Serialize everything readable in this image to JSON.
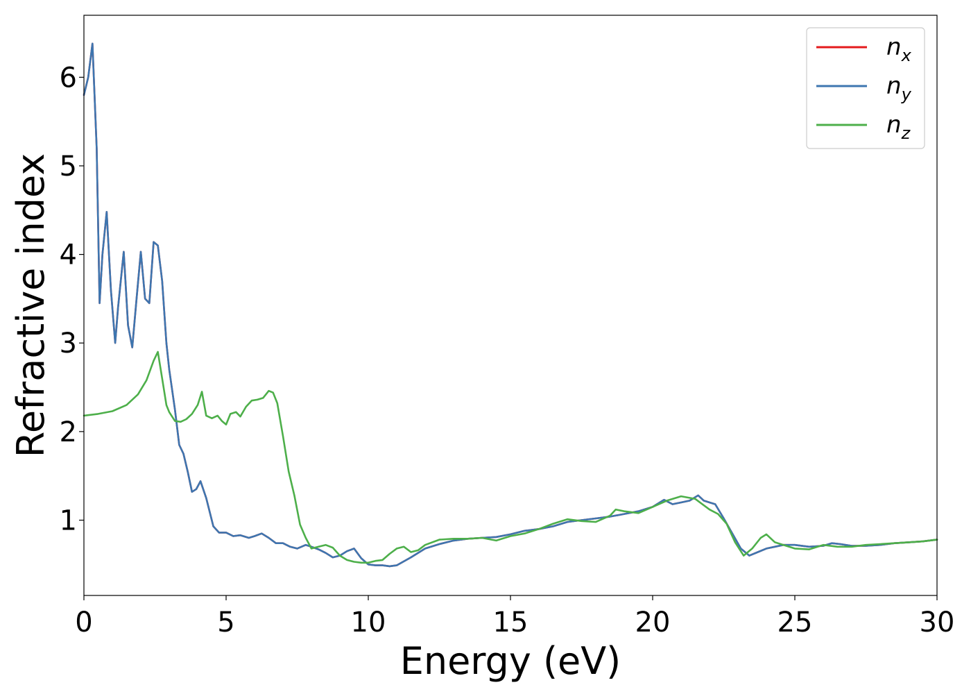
{
  "chart_data": {
    "type": "line",
    "title": "",
    "xlabel": "Energy (eV)",
    "ylabel": "Refractive index",
    "xlim": [
      0,
      30
    ],
    "ylim": [
      0.15,
      6.7
    ],
    "xticks": [
      0,
      5,
      10,
      15,
      20,
      25,
      30
    ],
    "yticks": [
      1,
      2,
      3,
      4,
      5,
      6
    ],
    "grid": false,
    "legend_position": "top-right",
    "series": [
      {
        "name": "n_x",
        "label_base": "n",
        "label_sub": "x",
        "color": "#e41a1c",
        "x": [
          0,
          0.15,
          0.3,
          0.45,
          0.55,
          0.65,
          0.8,
          0.95,
          1.1,
          1.2,
          1.4,
          1.55,
          1.7,
          1.85,
          2.0,
          2.15,
          2.3,
          2.45,
          2.6,
          2.75,
          2.9,
          3.0,
          3.2,
          3.35,
          3.5,
          3.65,
          3.8,
          3.95,
          4.1,
          4.3,
          4.55,
          4.75,
          5.0,
          5.25,
          5.5,
          5.8,
          6.0,
          6.25,
          6.5,
          6.75,
          7.0,
          7.25,
          7.5,
          7.8,
          8.0,
          8.25,
          8.5,
          8.75,
          9.0,
          9.25,
          9.5,
          9.75,
          10.0,
          10.25,
          10.5,
          10.75,
          11.0,
          11.5,
          12.0,
          12.5,
          13.0,
          13.5,
          14.0,
          14.5,
          15.0,
          15.5,
          16.0,
          16.5,
          17.0,
          17.5,
          18.0,
          18.5,
          19.0,
          19.5,
          20.0,
          20.4,
          20.7,
          21.0,
          21.3,
          21.6,
          21.8,
          22.0,
          22.2,
          22.5,
          22.8,
          23.1,
          23.4,
          23.7,
          24.0,
          24.3,
          24.6,
          25.0,
          25.5,
          26.0,
          26.3,
          26.6,
          27.0,
          27.5,
          28.0,
          28.5,
          29.0,
          29.5,
          30.0
        ],
        "y": [
          5.8,
          6.0,
          6.38,
          5.2,
          3.45,
          4.0,
          4.48,
          3.6,
          3.0,
          3.4,
          4.03,
          3.2,
          2.95,
          3.5,
          4.03,
          3.5,
          3.45,
          4.14,
          4.1,
          3.7,
          3.0,
          2.7,
          2.25,
          1.85,
          1.75,
          1.55,
          1.32,
          1.35,
          1.44,
          1.25,
          0.93,
          0.86,
          0.86,
          0.82,
          0.83,
          0.8,
          0.82,
          0.85,
          0.8,
          0.74,
          0.74,
          0.7,
          0.68,
          0.72,
          0.7,
          0.67,
          0.63,
          0.58,
          0.6,
          0.65,
          0.68,
          0.57,
          0.5,
          0.49,
          0.49,
          0.48,
          0.49,
          0.58,
          0.68,
          0.73,
          0.77,
          0.79,
          0.8,
          0.81,
          0.84,
          0.88,
          0.9,
          0.93,
          0.98,
          1.0,
          1.02,
          1.04,
          1.07,
          1.1,
          1.15,
          1.23,
          1.18,
          1.2,
          1.22,
          1.28,
          1.22,
          1.2,
          1.18,
          1.02,
          0.85,
          0.68,
          0.6,
          0.64,
          0.68,
          0.7,
          0.72,
          0.72,
          0.7,
          0.71,
          0.74,
          0.73,
          0.71,
          0.71,
          0.72,
          0.74,
          0.75,
          0.76,
          0.78
        ]
      },
      {
        "name": "n_y",
        "label_base": "n",
        "label_sub": "y",
        "color": "#3d76b0",
        "x": [
          0,
          0.15,
          0.3,
          0.45,
          0.55,
          0.65,
          0.8,
          0.95,
          1.1,
          1.2,
          1.4,
          1.55,
          1.7,
          1.85,
          2.0,
          2.15,
          2.3,
          2.45,
          2.6,
          2.75,
          2.9,
          3.0,
          3.2,
          3.35,
          3.5,
          3.65,
          3.8,
          3.95,
          4.1,
          4.3,
          4.55,
          4.75,
          5.0,
          5.25,
          5.5,
          5.8,
          6.0,
          6.25,
          6.5,
          6.75,
          7.0,
          7.25,
          7.5,
          7.8,
          8.0,
          8.25,
          8.5,
          8.75,
          9.0,
          9.25,
          9.5,
          9.75,
          10.0,
          10.25,
          10.5,
          10.75,
          11.0,
          11.5,
          12.0,
          12.5,
          13.0,
          13.5,
          14.0,
          14.5,
          15.0,
          15.5,
          16.0,
          16.5,
          17.0,
          17.5,
          18.0,
          18.5,
          19.0,
          19.5,
          20.0,
          20.4,
          20.7,
          21.0,
          21.3,
          21.6,
          21.8,
          22.0,
          22.2,
          22.5,
          22.8,
          23.1,
          23.4,
          23.7,
          24.0,
          24.3,
          24.6,
          25.0,
          25.5,
          26.0,
          26.3,
          26.6,
          27.0,
          27.5,
          28.0,
          28.5,
          29.0,
          29.5,
          30.0
        ],
        "y": [
          5.8,
          6.0,
          6.38,
          5.2,
          3.45,
          4.0,
          4.48,
          3.6,
          3.0,
          3.4,
          4.03,
          3.2,
          2.95,
          3.5,
          4.03,
          3.5,
          3.45,
          4.14,
          4.1,
          3.7,
          3.0,
          2.7,
          2.25,
          1.85,
          1.75,
          1.55,
          1.32,
          1.35,
          1.44,
          1.25,
          0.93,
          0.86,
          0.86,
          0.82,
          0.83,
          0.8,
          0.82,
          0.85,
          0.8,
          0.74,
          0.74,
          0.7,
          0.68,
          0.72,
          0.7,
          0.67,
          0.63,
          0.58,
          0.6,
          0.65,
          0.68,
          0.57,
          0.5,
          0.49,
          0.49,
          0.48,
          0.49,
          0.58,
          0.68,
          0.73,
          0.77,
          0.79,
          0.8,
          0.81,
          0.84,
          0.88,
          0.9,
          0.93,
          0.98,
          1.0,
          1.02,
          1.04,
          1.07,
          1.1,
          1.15,
          1.23,
          1.18,
          1.2,
          1.22,
          1.28,
          1.22,
          1.2,
          1.18,
          1.02,
          0.85,
          0.68,
          0.6,
          0.64,
          0.68,
          0.7,
          0.72,
          0.72,
          0.7,
          0.71,
          0.74,
          0.73,
          0.71,
          0.71,
          0.72,
          0.74,
          0.75,
          0.76,
          0.78
        ]
      },
      {
        "name": "n_z",
        "label_base": "n",
        "label_sub": "z",
        "color": "#4daf4a",
        "x": [
          0,
          0.5,
          1.0,
          1.5,
          1.9,
          2.2,
          2.45,
          2.6,
          2.75,
          2.9,
          3.0,
          3.2,
          3.4,
          3.6,
          3.8,
          4.0,
          4.15,
          4.3,
          4.5,
          4.7,
          4.85,
          5.0,
          5.15,
          5.35,
          5.5,
          5.7,
          5.9,
          6.1,
          6.3,
          6.5,
          6.65,
          6.8,
          7.0,
          7.2,
          7.4,
          7.6,
          7.8,
          8.0,
          8.25,
          8.5,
          8.75,
          9.0,
          9.25,
          9.5,
          9.75,
          10.0,
          10.25,
          10.5,
          10.75,
          11.0,
          11.25,
          11.5,
          11.75,
          12.0,
          12.5,
          13.0,
          13.5,
          14.0,
          14.5,
          15.0,
          15.5,
          16.0,
          16.5,
          17.0,
          17.5,
          18.0,
          18.5,
          18.7,
          19.0,
          19.5,
          20.0,
          20.5,
          21.0,
          21.5,
          22.0,
          22.3,
          22.6,
          22.9,
          23.2,
          23.5,
          23.8,
          24.0,
          24.3,
          24.6,
          25.0,
          25.5,
          26.0,
          26.5,
          27.0,
          27.5,
          28.0,
          28.5,
          29.0,
          29.5,
          30.0
        ],
        "y": [
          2.18,
          2.2,
          2.23,
          2.3,
          2.42,
          2.58,
          2.8,
          2.9,
          2.6,
          2.3,
          2.22,
          2.12,
          2.11,
          2.14,
          2.2,
          2.3,
          2.45,
          2.18,
          2.15,
          2.18,
          2.12,
          2.08,
          2.2,
          2.22,
          2.17,
          2.28,
          2.35,
          2.36,
          2.38,
          2.46,
          2.44,
          2.32,
          1.95,
          1.55,
          1.28,
          0.95,
          0.8,
          0.68,
          0.7,
          0.72,
          0.69,
          0.6,
          0.55,
          0.53,
          0.52,
          0.52,
          0.54,
          0.55,
          0.62,
          0.68,
          0.7,
          0.64,
          0.66,
          0.72,
          0.78,
          0.79,
          0.79,
          0.8,
          0.77,
          0.82,
          0.85,
          0.9,
          0.96,
          1.01,
          0.99,
          0.98,
          1.05,
          1.12,
          1.1,
          1.08,
          1.15,
          1.22,
          1.27,
          1.24,
          1.12,
          1.07,
          0.96,
          0.75,
          0.6,
          0.68,
          0.8,
          0.84,
          0.75,
          0.72,
          0.68,
          0.67,
          0.72,
          0.7,
          0.7,
          0.72,
          0.73,
          0.74,
          0.75,
          0.76,
          0.78
        ]
      }
    ]
  }
}
